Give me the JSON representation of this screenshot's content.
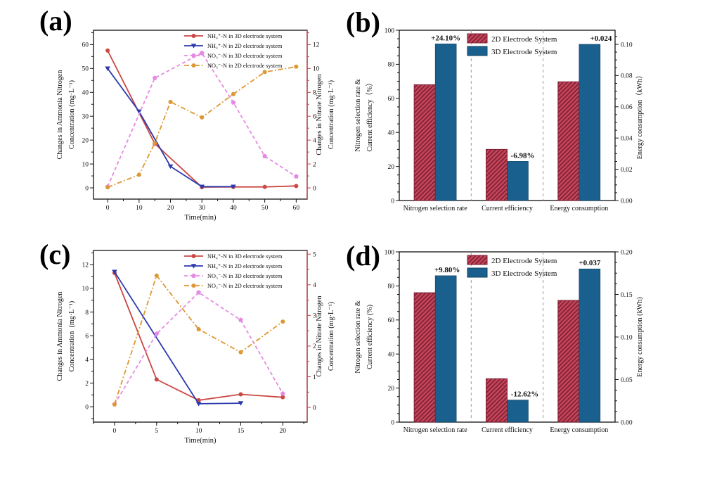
{
  "figure": {
    "background": "#ffffff",
    "panel_labels": [
      "(a)",
      "(b)",
      "(c)",
      "(d)"
    ]
  },
  "chart_data": [
    {
      "id": "a",
      "type": "line",
      "xlabel": "Time(min)",
      "ylabel_left": "Changes in Ammonia Nitrogen\nConcentration (mg·L⁻¹)",
      "ylabel_right": "Changes in Nitrate Nitrogen\nConcentration (mg·L⁻¹)",
      "xlim": [
        -4.5,
        63.5
      ],
      "xticks": [
        0,
        10,
        20,
        30,
        40,
        50,
        60
      ],
      "x_minor_step": 5,
      "ylim_left": [
        -4.7,
        66
      ],
      "yticks_left": [
        0,
        10,
        20,
        30,
        40,
        50,
        60
      ],
      "y_minor_left": 5,
      "ylim_right": [
        -0.94,
        13.2
      ],
      "yticks_right": [
        0,
        2,
        4,
        6,
        8,
        10,
        12
      ],
      "y_minor_right": 1,
      "right_axis_color": "#c04245",
      "legend_position": "top-right",
      "series": [
        {
          "name": "NH₄⁺-N in 3D electrode system",
          "axis": "left",
          "color": "#cb4743",
          "line": "solid",
          "marker": "circle",
          "x": [
            0,
            15,
            30,
            40,
            50,
            60
          ],
          "y": [
            57.5,
            18.5,
            0.3,
            0.4,
            0.4,
            0.8
          ]
        },
        {
          "name": "NH₄⁺-N in 2D electrode system",
          "axis": "left",
          "color": "#2c39ae",
          "line": "solid",
          "marker": "triangle-down",
          "x": [
            0,
            10,
            20,
            30,
            40
          ],
          "y": [
            50,
            32,
            9,
            0.5,
            0.5
          ]
        },
        {
          "name": "NO₃⁻-N in 3D electrode system",
          "axis": "right",
          "color": "#e58ae2",
          "line": "dashed",
          "marker": "pentagon",
          "x": [
            0,
            15,
            30,
            40,
            50,
            60
          ],
          "y": [
            0.1,
            9.2,
            11.3,
            7.15,
            2.65,
            0.95
          ]
        },
        {
          "name": "NO₃⁻-N in 2D electrode system",
          "axis": "right",
          "color": "#dd9733",
          "line": "dashdot",
          "marker": "circle",
          "x": [
            0,
            10,
            15,
            20,
            30,
            40,
            50,
            60
          ],
          "y": [
            0.05,
            1.1,
            3.75,
            7.2,
            5.9,
            7.85,
            9.7,
            10.15
          ]
        }
      ]
    },
    {
      "id": "b",
      "type": "bar",
      "categories": [
        "Nitrogen selection rate",
        "Current efficiency",
        "Energy consumption"
      ],
      "category_axis": [
        "left",
        "left",
        "right"
      ],
      "series": [
        {
          "name": "2D Electrode System",
          "values": [
            68,
            30,
            0.076
          ]
        },
        {
          "name": "3D Electrode System",
          "values": [
            92,
            23,
            0.1
          ]
        }
      ],
      "annotations": [
        "+24.10%",
        "-6.98%",
        "+0.024"
      ],
      "ylabel_left": "Nitrogen selection rate &\nCurrent efficiency（%）",
      "ylabel_right": "Energy consumption（kWh）",
      "ylim_left": [
        0,
        100
      ],
      "yticks_left": [
        0,
        20,
        40,
        60,
        80,
        100
      ],
      "y_minor_left": 5,
      "ylim_right": [
        0,
        0.109
      ],
      "yticks_right": [
        0,
        0.02,
        0.04,
        0.06,
        0.08,
        0.1
      ],
      "decimals_right": 2,
      "y_minor_right": 0.005,
      "bar_2d_fill": "#c4455a",
      "bar_2d_hatch": "#7d1f33",
      "bar_3d_fill": "#1a608e",
      "annotation_color": "#c2293a",
      "legend_position": "top-center"
    },
    {
      "id": "c",
      "type": "line",
      "xlabel": "Time(min)",
      "ylabel_left": "Changes in Ammonia Nitrogen\nConcentration (mg·L⁻¹)",
      "ylabel_right": "Changes in Nitrate Nitrogen\nConcentration (mg·L⁻¹)",
      "xlim": [
        -2.5,
        22.9
      ],
      "xticks": [
        0,
        5,
        10,
        15,
        20
      ],
      "x_minor_step": 2.5,
      "ylim_left": [
        -1.3,
        13.2
      ],
      "yticks_left": [
        0,
        2,
        4,
        6,
        8,
        10,
        12
      ],
      "y_minor_left": 1,
      "ylim_right": [
        -0.48,
        5.12
      ],
      "yticks_right": [
        0,
        1,
        2,
        3,
        4,
        5
      ],
      "y_minor_right": 0.5,
      "right_axis_color": "#c04245",
      "legend_position": "top-right",
      "series": [
        {
          "name": "NH₄⁺-N in 3D electrode system",
          "axis": "left",
          "color": "#cb4743",
          "line": "solid",
          "marker": "circle",
          "x": [
            0,
            5,
            10,
            15,
            20
          ],
          "y": [
            11.3,
            2.3,
            0.55,
            1.05,
            0.8
          ]
        },
        {
          "name": "NH₄⁺-N in 2D electrode system",
          "axis": "left",
          "color": "#2c39ae",
          "line": "solid",
          "marker": "triangle-down",
          "x": [
            0,
            10,
            15
          ],
          "y": [
            11.4,
            0.25,
            0.3
          ]
        },
        {
          "name": "NO₃⁻-N  in 3D electrode system",
          "axis": "right",
          "color": "#e58ae2",
          "line": "dashed",
          "marker": "pentagon",
          "x": [
            0,
            5,
            10,
            15,
            20
          ],
          "y": [
            0.1,
            2.4,
            3.75,
            2.85,
            0.45
          ]
        },
        {
          "name": "NO₃⁻-N  in 2D electrode system",
          "axis": "right",
          "color": "#dd9733",
          "line": "dashdot",
          "marker": "circle",
          "x": [
            0,
            5,
            10,
            15,
            20
          ],
          "y": [
            0.1,
            4.3,
            2.55,
            1.8,
            2.8
          ]
        }
      ]
    },
    {
      "id": "d",
      "type": "bar",
      "categories": [
        "Nitrogen selection rate",
        "Current efficiency",
        "Energy consumption"
      ],
      "category_axis": [
        "left",
        "left",
        "right"
      ],
      "series": [
        {
          "name": "2D Electrode System",
          "values": [
            76,
            25.5,
            0.143
          ]
        },
        {
          "name": "3D Electrode System",
          "values": [
            86,
            13,
            0.18
          ]
        }
      ],
      "annotations": [
        "+9.80%",
        "-12.62%",
        "+0.037"
      ],
      "ylabel_left": "Nitrogen selection rate &\nCurrent efficiency (%)",
      "ylabel_right": "Energy consumption (kWh)",
      "ylim_left": [
        0,
        100
      ],
      "yticks_left": [
        0,
        20,
        40,
        60,
        80,
        100
      ],
      "y_minor_left": 5,
      "ylim_right": [
        0,
        0.2
      ],
      "yticks_right": [
        0,
        0.05,
        0.1,
        0.15,
        0.2
      ],
      "decimals_right": 2,
      "y_minor_right": 0.0125,
      "bar_2d_fill": "#c4455a",
      "bar_2d_hatch": "#7d1f33",
      "bar_3d_fill": "#1a608e",
      "annotation_color": "#c2293a",
      "legend_position": "top-center"
    }
  ]
}
